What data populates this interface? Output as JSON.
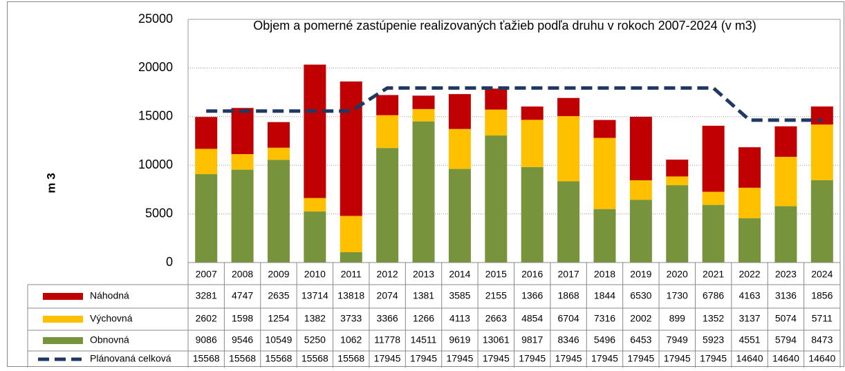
{
  "chart_data": {
    "type": "bar",
    "stacked": true,
    "title": "Objem a  pomerné zastúpenie realizovaných ťažieb podľa druhu v rokoch 2007-2024 (v m3)",
    "y_label": "m 3",
    "categories": [
      "2007",
      "2008",
      "2009",
      "2010",
      "2011",
      "2012",
      "2013",
      "2014",
      "2015",
      "2016",
      "2017",
      "2018",
      "2019",
      "2020",
      "2021",
      "2022",
      "2023",
      "2024"
    ],
    "series": [
      {
        "name": "Náhodná",
        "color": "#c00000",
        "values": [
          3281,
          4747,
          2635,
          13714,
          13818,
          2074,
          1381,
          3585,
          2155,
          1366,
          1868,
          1844,
          6530,
          1730,
          6786,
          4163,
          3136,
          1856
        ]
      },
      {
        "name": "Výchovná",
        "color": "#ffc000",
        "values": [
          2602,
          1598,
          1254,
          1382,
          3733,
          3366,
          1266,
          4113,
          2663,
          4854,
          6704,
          7316,
          2002,
          899,
          1352,
          3137,
          5074,
          5711
        ]
      },
      {
        "name": "Obnovná",
        "color": "#77933c",
        "values": [
          9086,
          9546,
          10549,
          5250,
          1062,
          11778,
          14511,
          9619,
          13061,
          9817,
          8346,
          5496,
          6453,
          7949,
          5923,
          4551,
          5794,
          8473
        ]
      },
      {
        "name": "Plánovaná celková",
        "color": "#1f3864",
        "type": "line",
        "dashed": true,
        "values": [
          15568,
          15568,
          15568,
          15568,
          15568,
          17945,
          17945,
          17945,
          17945,
          17945,
          17945,
          17945,
          17945,
          17945,
          17945,
          14640,
          14640,
          14640
        ]
      }
    ],
    "stack_order": [
      "Obnovná",
      "Výchovná",
      "Náhodná"
    ],
    "ylim": [
      0,
      25000
    ],
    "yticks": [
      0,
      5000,
      10000,
      15000,
      20000,
      25000
    ],
    "grid": true,
    "data_table": true
  }
}
